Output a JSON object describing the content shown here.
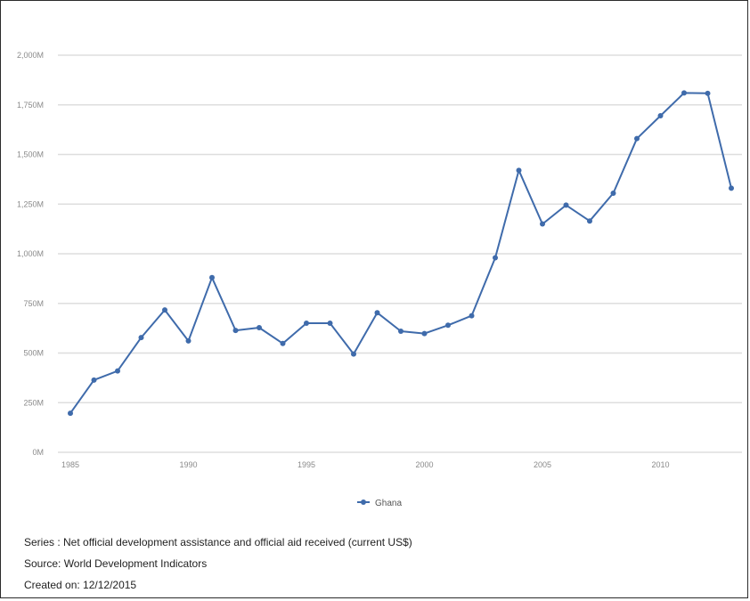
{
  "chart_data": {
    "type": "line",
    "title": "",
    "xlabel": "",
    "ylabel": "",
    "x": [
      1985,
      1986,
      1987,
      1988,
      1989,
      1990,
      1991,
      1992,
      1993,
      1994,
      1995,
      1996,
      1997,
      1998,
      1999,
      2000,
      2001,
      2002,
      2003,
      2004,
      2005,
      2006,
      2007,
      2008,
      2009,
      2010,
      2011,
      2012,
      2013
    ],
    "series": [
      {
        "name": "Ghana",
        "values": [
          197,
          364,
          410,
          578,
          717,
          561,
          880,
          614,
          628,
          548,
          650,
          650,
          495,
          703,
          610,
          598,
          640,
          688,
          980,
          1420,
          1150,
          1245,
          1165,
          1305,
          1580,
          1695,
          1810,
          1808,
          1330
        ]
      }
    ],
    "xticks": [
      1985,
      1990,
      1995,
      2000,
      2005,
      2010
    ],
    "xtick_labels": [
      "1985",
      "1990",
      "1995",
      "2000",
      "2005",
      "2010"
    ],
    "yticks": [
      0,
      250,
      500,
      750,
      1000,
      1250,
      1500,
      1750,
      2000
    ],
    "ytick_labels": [
      "0M",
      "250M",
      "500M",
      "750M",
      "1,000M",
      "1,250M",
      "1,500M",
      "1,750M",
      "2,000M"
    ],
    "ylim": [
      0,
      2000
    ],
    "xlim": [
      1985,
      2013
    ],
    "grid": true,
    "legend_position": "bottom-center",
    "colors": {
      "line": "#3f6bab",
      "grid": "#dedede",
      "axis_text": "#8a8a8a"
    }
  },
  "legend": {
    "label": "Ghana"
  },
  "footer": {
    "series_line": "Series : Net official development assistance and official aid received (current US$)",
    "source_line": "Source: World Development Indicators",
    "created_line": "Created on: 12/12/2015"
  }
}
